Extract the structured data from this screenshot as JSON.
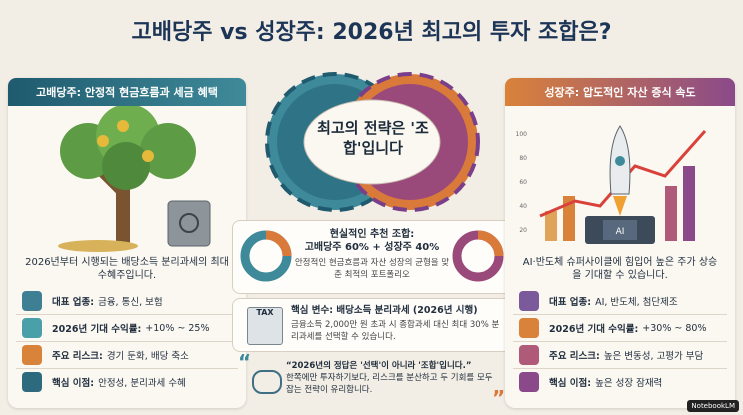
{
  "header": {
    "title": "고배당주 vs 성장주: 2026년 최고의 투자 조합은?"
  },
  "left_panel": {
    "title": "고배당주: 안정적 현금흐름과 세금 혜택",
    "caption": "2026년부터 시행되는 배당소득 분리과세의 최대 수혜주입니다.",
    "items": [
      {
        "label": "대표 업종:",
        "text": "금융, 통신, 보험"
      },
      {
        "label": "2026년 기대 수익률:",
        "text": "+10% ~ 25%"
      },
      {
        "label": "주요 리스크:",
        "text": "경기 둔화, 배당 축소"
      },
      {
        "label": "핵심 이점:",
        "text": "안정성, 분리과세 수혜"
      }
    ]
  },
  "center": {
    "gear_text": "최고의 전략은 '조합'입니다",
    "combo": {
      "title": "현실적인 추천 조합:",
      "mix": "고배당주 60% + 성장주 40%",
      "text": "안정적인 현금흐름과 자산 성장의 균형을 맞춘 최적의 포트폴리오"
    },
    "tax": {
      "icon_label": "TAX",
      "title": "핵심 변수: 배당소득 분리과세 (2026년 시행)",
      "text": "금융소득 2,000만 원 초과 시 종합과세 대신 최대 30% 분리과세를 선택할 수 있습니다."
    },
    "quote": {
      "headline": "“2026년의 정답은 '선택'이 아니라 '조합'입니다.”",
      "text": "한쪽에만 투자하기보다, 리스크를 분산하고 두 기회를 모두 잡는 전략이 유리합니다."
    }
  },
  "right_panel": {
    "title": "성장주: 압도적인 자산 증식 속도",
    "chart_ticks": [
      "100",
      "80",
      "60",
      "40",
      "20"
    ],
    "chip_label": "AI",
    "caption": "AI·반도체 슈퍼사이클에 힘입어 높은 주가 상승을 기대할 수 있습니다.",
    "items": [
      {
        "label": "대표 업종:",
        "text": "AI, 반도체, 첨단제조"
      },
      {
        "label": "2026년 기대 수익률:",
        "text": "+30% ~ 80%"
      },
      {
        "label": "주요 리스크:",
        "text": "높은 변동성, 고평가 부담"
      },
      {
        "label": "핵심 이점:",
        "text": "높은 성장 잠재력"
      }
    ]
  },
  "footer": {
    "badge": "NotebookLM"
  }
}
